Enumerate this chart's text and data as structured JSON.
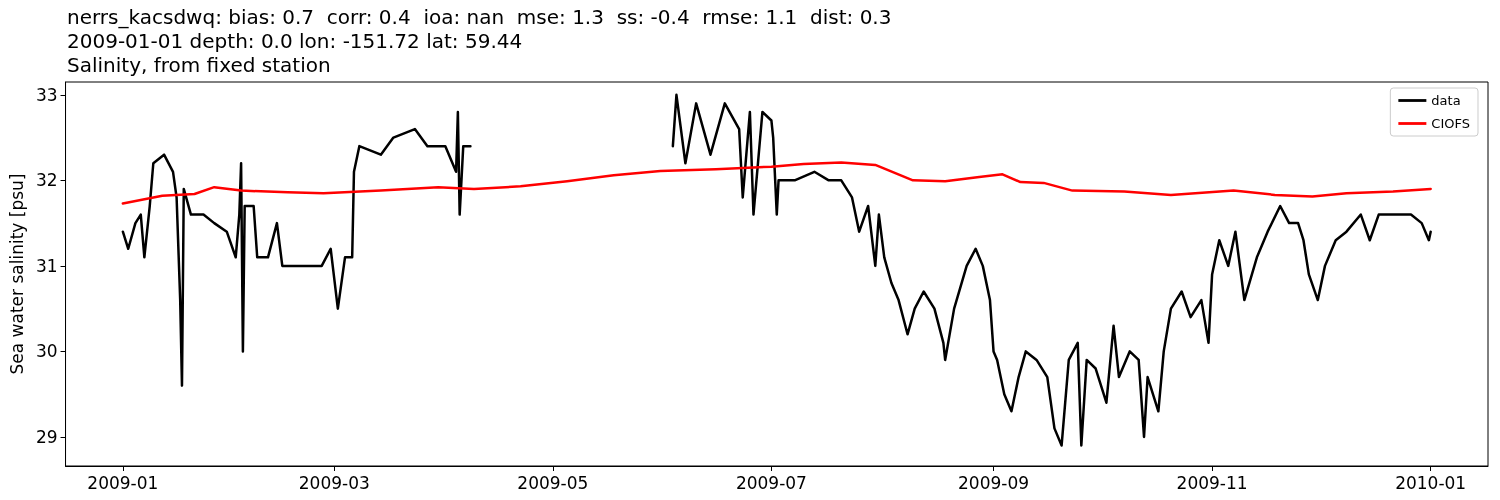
{
  "chart_data": {
    "type": "line",
    "title": "nerrs_kacsdwq: bias: 0.7  corr: 0.4  ioa: nan  mse: 1.3  ss: -0.4  rmse: 1.1  dist: 0.3",
    "subtitle": "2009-01-01 depth: 0.0 lon: -151.72 lat: 59.44\nSalinity, from fixed station",
    "ylabel": "Sea water salinity [psu]",
    "xlim": [
      "2008-12-16",
      "2010-01-17"
    ],
    "xticks": [
      "2009-01",
      "2009-03",
      "2009-05",
      "2009-07",
      "2009-09",
      "2009-11",
      "2010-01"
    ],
    "ylim": [
      28.66,
      33.15
    ],
    "yticks": [
      29,
      30,
      31,
      32,
      33
    ],
    "grid": false,
    "legend": "top right",
    "marker": "none",
    "line_style": "solid",
    "series": [
      {
        "name": "data",
        "color": "#000000",
        "x": [
          "2009-01-01",
          "2009-01-02T12:00",
          "2009-01-04T12:00",
          "2009-01-06",
          "2009-01-07",
          "2009-01-08T12:00",
          "2009-01-09T12:00",
          "2009-01-12T12:00",
          "2009-01-15",
          "2009-01-16",
          "2009-01-17",
          "2009-01-17T12:00",
          "2009-01-18",
          "2009-01-20",
          "2009-01-23T12:00",
          "2009-01-26T12:00",
          "2009-01-30",
          "2009-02-01T12:00",
          "2009-02-02T12:00",
          "2009-02-03",
          "2009-02-03T12:00",
          "2009-02-04",
          "2009-02-06T12:00",
          "2009-02-07T12:00",
          "2009-02-10T12:00",
          "2009-02-13",
          "2009-02-14T12:00",
          "2009-02-19T12:00",
          "2009-02-25T12:00",
          "2009-02-28",
          "2009-03-02",
          "2009-03-04",
          "2009-03-06",
          "2009-03-06T12:00",
          "2009-03-08",
          "2009-03-14",
          "2009-03-17T12:00",
          "2009-03-23T12:00",
          "2009-03-27",
          "2009-04-01",
          "2009-04-04",
          "2009-04-04T12:00",
          "2009-04-05",
          "2009-04-06",
          "2009-04-08",
          "2009-05-06",
          "2009-06-03T12:00",
          "2009-06-04T12:00",
          "2009-06-07",
          "2009-06-10",
          "2009-06-14",
          "2009-06-18",
          "2009-06-22",
          "2009-06-23",
          "2009-06-25",
          "2009-06-26",
          "2009-06-28T12:00",
          "2009-07-01",
          "2009-07-01T12:00",
          "2009-07-02T12:00",
          "2009-07-03",
          "2009-07-07T12:00",
          "2009-07-13",
          "2009-07-17",
          "2009-07-20T12:00",
          "2009-07-23T12:00",
          "2009-07-25T12:00",
          "2009-07-28",
          "2009-07-30",
          "2009-07-31",
          "2009-08-01T12:00",
          "2009-08-03T12:00",
          "2009-08-05T12:00",
          "2009-08-08",
          "2009-08-10",
          "2009-08-12T12:00",
          "2009-08-15T12:00",
          "2009-08-18",
          "2009-08-18T12:00",
          "2009-08-21",
          "2009-08-24T12:00",
          "2009-08-27",
          "2009-08-29",
          "2009-08-31",
          "2009-09-01",
          "2009-09-02",
          "2009-09-04",
          "2009-09-06",
          "2009-09-08",
          "2009-09-10",
          "2009-09-13",
          "2009-09-16",
          "2009-09-18",
          "2009-09-20",
          "2009-09-22",
          "2009-09-24T12:00",
          "2009-09-25T12:00",
          "2009-09-27",
          "2009-09-29T12:00",
          "2009-10-02T12:00",
          "2009-10-04T12:00",
          "2009-10-06",
          "2009-10-09",
          "2009-10-11T12:00",
          "2009-10-13",
          "2009-10-14",
          "2009-10-17",
          "2009-10-18T12:00",
          "2009-10-20T12:00",
          "2009-10-23T12:00",
          "2009-10-26",
          "2009-10-29",
          "2009-10-31",
          "2009-11-01",
          "2009-11-03",
          "2009-11-05T12:00",
          "2009-11-07T12:00",
          "2009-11-10",
          "2009-11-13T12:00",
          "2009-11-16T12:00",
          "2009-11-20",
          "2009-11-22T12:00",
          "2009-11-25",
          "2009-11-26T12:00",
          "2009-11-28",
          "2009-11-30T12:00",
          "2009-12-02T12:00",
          "2009-12-05T12:00",
          "2009-12-08T12:00",
          "2009-12-12T12:00",
          "2009-12-15",
          "2009-12-17T12:00",
          "2009-12-23",
          "2009-12-26T12:00",
          "2009-12-29T12:00",
          "2009-12-31T12:00",
          "2010-01-01"
        ],
        "values": [
          31.4,
          31.2,
          31.5,
          31.6,
          31.1,
          31.7,
          32.2,
          32.3,
          32.1,
          31.8,
          30.6,
          29.6,
          31.9,
          31.6,
          31.6,
          31.5,
          31.4,
          31.1,
          31.6,
          32.2,
          30.0,
          31.7,
          31.7,
          31.1,
          31.1,
          31.5,
          31.0,
          31.0,
          31.0,
          31.2,
          30.5,
          31.1,
          31.1,
          32.1,
          32.4,
          32.3,
          32.5,
          32.6,
          32.4,
          32.4,
          32.1,
          32.8,
          31.6,
          32.4,
          32.4,
          null,
          32.4,
          33.0,
          32.2,
          32.9,
          32.3,
          32.9,
          32.6,
          31.8,
          32.8,
          31.6,
          32.8,
          32.7,
          32.5,
          31.6,
          32.0,
          32.0,
          32.1,
          32.0,
          32.0,
          31.8,
          31.4,
          31.7,
          31.0,
          31.6,
          31.1,
          30.8,
          30.6,
          30.2,
          30.5,
          30.7,
          30.5,
          30.1,
          29.9,
          30.5,
          31.0,
          31.2,
          31.0,
          30.6,
          30.0,
          29.9,
          29.5,
          29.3,
          29.7,
          30.0,
          29.9,
          29.7,
          29.1,
          28.9,
          29.9,
          30.1,
          28.9,
          29.9,
          29.8,
          29.4,
          30.3,
          29.7,
          30.0,
          29.9,
          29.0,
          29.7,
          29.3,
          30.0,
          30.5,
          30.7,
          30.4,
          30.6,
          30.1,
          30.9,
          31.3,
          31.0,
          31.4,
          30.6,
          31.1,
          31.4,
          31.7,
          31.5,
          31.5,
          31.3,
          30.9,
          30.6,
          31.0,
          31.3,
          31.4,
          31.6,
          31.3,
          31.6,
          31.6,
          31.6,
          31.5,
          31.3,
          31.4
        ]
      },
      {
        "name": "CIOFS",
        "color": "#ff0000",
        "x": [
          "2009-01-01",
          "2009-01-12",
          "2009-01-21",
          "2009-01-26T12:00",
          "2009-02-03",
          "2009-02-16",
          "2009-02-26",
          "2009-03-14",
          "2009-03-30",
          "2009-04-09",
          "2009-04-22",
          "2009-05-05",
          "2009-05-18",
          "2009-05-31",
          "2009-06-15T12:00",
          "2009-07-01",
          "2009-07-10",
          "2009-07-20T12:00",
          "2009-07-30",
          "2009-08-09T12:00",
          "2009-08-18T12:00",
          "2009-08-28",
          "2009-09-03T12:00",
          "2009-09-08T12:00",
          "2009-09-15",
          "2009-09-23",
          "2009-10-07T12:00",
          "2009-10-20T12:00",
          "2009-11-07",
          "2009-11-18T12:00",
          "2009-11-29",
          "2009-12-08T12:00",
          "2009-12-21T12:00",
          "2010-01-01"
        ],
        "values": [
          31.73,
          31.82,
          31.84,
          31.92,
          31.88,
          31.86,
          31.85,
          31.88,
          31.92,
          31.9,
          31.93,
          31.99,
          32.06,
          32.11,
          32.13,
          32.16,
          32.19,
          32.21,
          32.18,
          32.0,
          31.99,
          32.04,
          32.07,
          31.98,
          31.97,
          31.88,
          31.87,
          31.83,
          31.88,
          31.83,
          31.81,
          31.85,
          31.87,
          31.9
        ]
      }
    ]
  }
}
